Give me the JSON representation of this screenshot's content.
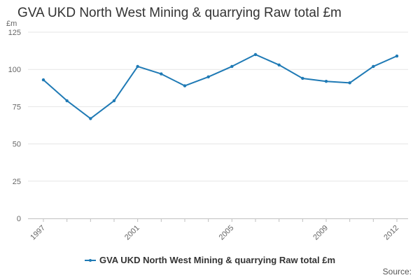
{
  "chart_data": {
    "type": "line",
    "title": "GVA UKD North West Mining & quarrying Raw total £m",
    "ylabel": "£m",
    "xlabel": "",
    "x": [
      1997,
      1998,
      1999,
      2000,
      2001,
      2002,
      2003,
      2004,
      2005,
      2006,
      2007,
      2008,
      2009,
      2010,
      2011,
      2012
    ],
    "series": [
      {
        "name": "GVA UKD North West Mining & quarrying Raw total £m",
        "values": [
          93,
          79,
          67,
          79,
          102,
          97,
          89,
          95,
          102,
          110,
          103,
          94,
          92,
          91,
          102,
          109
        ],
        "color": "#1f7ab5"
      }
    ],
    "x_tick_labels": [
      "1997",
      "2001",
      "2005",
      "2009",
      "2012"
    ],
    "y_ticks": [
      0,
      25,
      50,
      75,
      100,
      125
    ],
    "ylim": [
      0,
      125
    ],
    "grid": true,
    "legend_position": "bottom"
  },
  "footer": {
    "source_label": "Source:"
  }
}
